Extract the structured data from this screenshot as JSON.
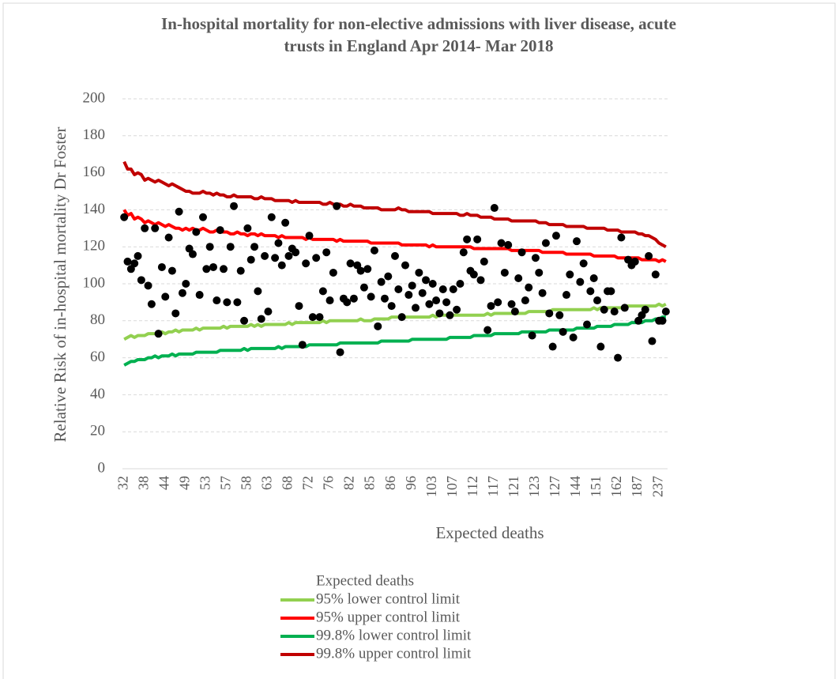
{
  "chart_data": {
    "type": "funnel",
    "title": [
      "In-hospital mortality for non-elective admissions with liver disease, acute",
      "trusts in England Apr 2014- Mar 2018"
    ],
    "y_label": "Relative Risk of in-hospital mortality Dr Foster",
    "x_label": "Expected deaths",
    "ylim": [
      0,
      200
    ],
    "yticks": [
      0,
      20,
      40,
      60,
      80,
      100,
      120,
      140,
      160,
      180,
      200
    ],
    "grid": true,
    "categories": [
      "32",
      null,
      null,
      null,
      null,
      null,
      "38",
      null,
      null,
      null,
      null,
      null,
      "44",
      null,
      null,
      null,
      null,
      null,
      "49",
      null,
      null,
      null,
      null,
      null,
      "53",
      null,
      null,
      null,
      null,
      null,
      "57",
      null,
      null,
      null,
      null,
      null,
      "58",
      null,
      null,
      null,
      null,
      null,
      "63",
      null,
      null,
      null,
      null,
      null,
      "68",
      null,
      null,
      null,
      null,
      null,
      "72",
      null,
      null,
      null,
      null,
      null,
      "76",
      null,
      null,
      null,
      null,
      null,
      "82",
      null,
      null,
      null,
      null,
      null,
      "85",
      null,
      null,
      null,
      null,
      null,
      "86",
      null,
      null,
      null,
      null,
      null,
      "96",
      null,
      null,
      null,
      null,
      null,
      "103",
      null,
      null,
      null,
      null,
      null,
      "107",
      null,
      null,
      null,
      null,
      null,
      "112",
      null,
      null,
      null,
      null,
      null,
      "117",
      null,
      null,
      null,
      null,
      null,
      "121",
      null,
      null,
      null,
      null,
      null,
      "123",
      null,
      null,
      null,
      null,
      null,
      "127",
      null,
      null,
      null,
      null,
      null,
      "144",
      null,
      null,
      null,
      null,
      null,
      "151",
      null,
      null,
      null,
      null,
      null,
      "162",
      null,
      null,
      null,
      null,
      null,
      "187",
      null,
      null,
      null,
      null,
      null,
      "237",
      null,
      null
    ],
    "series": [
      {
        "name": "Expected deaths",
        "marker": "dot",
        "color": "#000000",
        "values": [
          136,
          112,
          108,
          111,
          115,
          102,
          130,
          99,
          89,
          130,
          73,
          109,
          93,
          125,
          107,
          84,
          139,
          95,
          100,
          119,
          116,
          128,
          94,
          136,
          108,
          120,
          109,
          91,
          129,
          108,
          90,
          120,
          142,
          90,
          107,
          80,
          130,
          113,
          120,
          96,
          81,
          115,
          85,
          136,
          114,
          122,
          110,
          133,
          115,
          119,
          117,
          88,
          67,
          111,
          126,
          82,
          114,
          82,
          96,
          117,
          91,
          106,
          142,
          63,
          92,
          90,
          111,
          92,
          110,
          107,
          98,
          108,
          93,
          118,
          77,
          101,
          92,
          104,
          88,
          115,
          97,
          82,
          110,
          94,
          99,
          87,
          106,
          95,
          102,
          89,
          100,
          91,
          84,
          97,
          90,
          83,
          97,
          86,
          100,
          117,
          124,
          107,
          105,
          124,
          102,
          112,
          75,
          88,
          141,
          90,
          122,
          106,
          121,
          89,
          85,
          103,
          117,
          91,
          98,
          72,
          114,
          106,
          95,
          122,
          84,
          66,
          126,
          83,
          74,
          94,
          105,
          71,
          123,
          101,
          111,
          78,
          96,
          103,
          91,
          66,
          86,
          96,
          96,
          85,
          60,
          125,
          87,
          113,
          110,
          112,
          80,
          83,
          86,
          115,
          69,
          105,
          80,
          80,
          85
        ]
      },
      {
        "name": "95% lower control limit",
        "marker": "line",
        "color": "#92d050",
        "values": [
          70,
          71,
          72,
          71,
          72,
          72,
          72,
          73,
          73,
          73,
          73,
          74,
          73,
          74,
          74,
          75,
          74,
          75,
          75,
          75,
          75,
          76,
          75,
          76,
          76,
          76,
          76,
          76,
          76,
          77,
          76,
          77,
          77,
          77,
          77,
          77,
          77,
          78,
          77,
          78,
          77,
          78,
          78,
          78,
          78,
          78,
          78,
          78,
          79,
          78,
          79,
          79,
          79,
          79,
          79,
          79,
          79,
          79,
          80,
          79,
          80,
          80,
          80,
          80,
          80,
          80,
          80,
          80,
          80,
          81,
          80,
          80,
          80,
          81,
          81,
          81,
          81,
          81,
          82,
          82,
          82,
          82,
          82,
          82,
          82,
          82,
          82,
          82,
          82,
          82,
          83,
          82,
          83,
          83,
          83,
          83,
          83,
          83,
          83,
          83,
          83,
          83,
          83,
          83,
          83,
          83,
          84,
          83,
          84,
          84,
          84,
          84,
          84,
          84,
          84,
          84,
          84,
          84,
          85,
          85,
          85,
          85,
          85,
          85,
          85,
          86,
          86,
          86,
          86,
          86,
          86,
          86,
          86,
          86,
          86,
          86,
          86,
          87,
          86,
          87,
          87,
          87,
          87,
          87,
          87,
          87,
          88,
          88,
          88,
          88,
          88,
          88,
          88,
          88,
          88,
          88,
          89,
          88,
          89
        ]
      },
      {
        "name": "95% upper control limit",
        "marker": "line",
        "color": "#ff0000",
        "values": [
          140,
          137,
          138,
          135,
          136,
          135,
          133,
          134,
          133,
          132,
          133,
          132,
          131,
          132,
          131,
          130,
          130,
          129,
          130,
          129,
          130,
          129,
          129,
          130,
          129,
          128,
          128,
          129,
          128,
          128,
          128,
          127,
          127,
          128,
          127,
          127,
          126,
          127,
          127,
          126,
          127,
          126,
          126,
          126,
          126,
          125,
          126,
          125,
          125,
          125,
          125,
          125,
          125,
          124,
          125,
          124,
          124,
          124,
          124,
          124,
          124,
          124,
          123,
          124,
          123,
          123,
          123,
          123,
          123,
          123,
          123,
          123,
          122,
          122,
          122,
          122,
          122,
          122,
          122,
          122,
          122,
          121,
          121,
          121,
          121,
          121,
          121,
          121,
          121,
          120,
          121,
          120,
          120,
          120,
          120,
          120,
          120,
          120,
          120,
          120,
          120,
          120,
          119,
          119,
          119,
          119,
          119,
          119,
          119,
          119,
          119,
          119,
          119,
          118,
          118,
          118,
          118,
          118,
          118,
          118,
          118,
          118,
          117,
          117,
          117,
          117,
          117,
          117,
          117,
          116,
          116,
          116,
          116,
          116,
          116,
          116,
          116,
          115,
          115,
          115,
          115,
          115,
          115,
          115,
          114,
          114,
          114,
          114,
          114,
          114,
          114,
          113,
          113,
          113,
          113,
          113,
          112,
          113,
          112
        ]
      },
      {
        "name": "99.8% lower control limit",
        "marker": "line",
        "color": "#00b050",
        "values": [
          56,
          57,
          58,
          58,
          59,
          59,
          59,
          60,
          60,
          61,
          60,
          61,
          61,
          61,
          62,
          61,
          62,
          62,
          62,
          62,
          62,
          63,
          63,
          63,
          63,
          63,
          63,
          63,
          64,
          64,
          64,
          64,
          64,
          64,
          64,
          65,
          64,
          65,
          65,
          65,
          65,
          65,
          65,
          65,
          65,
          66,
          65,
          66,
          66,
          66,
          66,
          66,
          66,
          66,
          67,
          67,
          67,
          67,
          67,
          67,
          67,
          67,
          67,
          68,
          68,
          68,
          68,
          68,
          68,
          68,
          68,
          68,
          68,
          68,
          68,
          69,
          69,
          69,
          69,
          69,
          69,
          69,
          69,
          69,
          70,
          70,
          70,
          70,
          70,
          70,
          70,
          70,
          70,
          70,
          70,
          71,
          71,
          71,
          71,
          71,
          71,
          71,
          72,
          72,
          72,
          72,
          72,
          72,
          73,
          73,
          73,
          73,
          73,
          73,
          73,
          73,
          74,
          74,
          74,
          74,
          74,
          74,
          74,
          74,
          75,
          75,
          75,
          75,
          75,
          75,
          75,
          75,
          76,
          76,
          76,
          76,
          76,
          76,
          77,
          77,
          77,
          77,
          77,
          78,
          78,
          78,
          78,
          78,
          79,
          79,
          79,
          79,
          80,
          80,
          80,
          81,
          81,
          82,
          82
        ]
      },
      {
        "name": "99.8% upper control limit",
        "marker": "line",
        "color": "#c00000",
        "values": [
          166,
          162,
          162,
          159,
          160,
          159,
          156,
          157,
          156,
          155,
          156,
          155,
          154,
          153,
          154,
          153,
          152,
          151,
          150,
          150,
          149,
          149,
          149,
          150,
          149,
          149,
          148,
          149,
          148,
          148,
          147,
          147,
          148,
          147,
          147,
          147,
          147,
          147,
          146,
          146,
          147,
          146,
          146,
          146,
          145,
          145,
          145,
          145,
          145,
          144,
          145,
          144,
          144,
          144,
          144,
          144,
          144,
          144,
          143,
          143,
          144,
          143,
          143,
          143,
          142,
          142,
          143,
          142,
          142,
          142,
          141,
          141,
          141,
          141,
          141,
          140,
          140,
          140,
          140,
          140,
          141,
          140,
          140,
          139,
          139,
          139,
          139,
          139,
          139,
          139,
          138,
          138,
          138,
          138,
          138,
          138,
          138,
          138,
          137,
          137,
          138,
          137,
          137,
          137,
          136,
          136,
          136,
          136,
          135,
          135,
          135,
          135,
          135,
          134,
          134,
          134,
          134,
          134,
          134,
          134,
          134,
          133,
          133,
          133,
          132,
          132,
          132,
          132,
          132,
          131,
          131,
          131,
          131,
          131,
          131,
          130,
          130,
          130,
          130,
          130,
          130,
          129,
          129,
          129,
          129,
          128,
          128,
          128,
          128,
          128,
          127,
          127,
          126,
          126,
          125,
          124,
          122,
          121,
          120
        ]
      }
    ]
  }
}
